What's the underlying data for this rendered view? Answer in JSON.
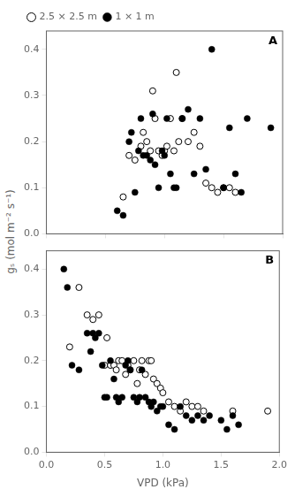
{
  "chart_data": [
    {
      "type": "scatter",
      "annotations": [
        "A"
      ],
      "ylabel": "gₛ (mol m⁻² s⁻¹)",
      "series": [
        {
          "name": "1 × 1 m",
          "color": "#000000",
          "marker": "filled",
          "x": [
            0.6,
            0.65,
            0.7,
            0.72,
            0.75,
            0.78,
            0.8,
            0.82,
            0.85,
            0.88,
            0.9,
            0.92,
            0.95,
            0.98,
            1.0,
            1.02,
            1.05,
            1.08,
            1.1,
            1.15,
            1.2,
            1.25,
            1.3,
            1.35,
            1.4,
            1.5,
            1.55,
            1.6,
            1.65,
            1.7,
            1.9
          ],
          "values": [
            0.05,
            0.04,
            0.2,
            0.22,
            0.09,
            0.18,
            0.25,
            0.17,
            0.17,
            0.16,
            0.26,
            0.15,
            0.1,
            0.18,
            0.17,
            0.25,
            0.13,
            0.1,
            0.1,
            0.25,
            0.27,
            0.13,
            0.25,
            0.14,
            0.4,
            0.1,
            0.23,
            0.13,
            0.09,
            0.25,
            0.23
          ]
        },
        {
          "name": "2.5 × 2.5 m",
          "color": "#000000",
          "marker": "open",
          "x": [
            0.65,
            0.7,
            0.75,
            0.8,
            0.82,
            0.85,
            0.88,
            0.9,
            0.92,
            0.95,
            0.98,
            1.0,
            1.02,
            1.05,
            1.08,
            1.1,
            1.12,
            1.15,
            1.2,
            1.25,
            1.3,
            1.35,
            1.4,
            1.45,
            1.5,
            1.55,
            1.6
          ],
          "values": [
            0.08,
            0.17,
            0.16,
            0.19,
            0.22,
            0.2,
            0.18,
            0.31,
            0.25,
            0.18,
            0.17,
            0.18,
            0.19,
            0.25,
            0.18,
            0.35,
            0.2,
            0.25,
            0.2,
            0.22,
            0.19,
            0.11,
            0.1,
            0.09,
            0.1,
            0.1,
            0.09
          ]
        }
      ],
      "xlim": [
        0.0,
        2.0
      ],
      "ylim": [
        0.0,
        0.44
      ],
      "xticks": [
        0,
        0.5,
        1,
        1.5,
        2
      ],
      "yticks": [
        {
          "value": 0,
          "label": "0.0"
        },
        0.1,
        0.2,
        0.3,
        0.4
      ],
      "tick_labels": "y",
      "grid": false,
      "legend": "upper left"
    },
    {
      "type": "scatter",
      "annotations": [
        "B"
      ],
      "xlabel": "VPD (kPa)",
      "series": [
        {
          "color": "#000000",
          "marker": "filled",
          "x": [
            0.15,
            0.18,
            0.22,
            0.28,
            0.35,
            0.38,
            0.4,
            0.42,
            0.45,
            0.48,
            0.5,
            0.52,
            0.55,
            0.58,
            0.6,
            0.62,
            0.65,
            0.68,
            0.7,
            0.72,
            0.75,
            0.78,
            0.8,
            0.82,
            0.85,
            0.88,
            0.9,
            0.92,
            0.95,
            0.98,
            1.0,
            1.05,
            1.1,
            1.15,
            1.2,
            1.25,
            1.3,
            1.35,
            1.4,
            1.5,
            1.55,
            1.6,
            1.65
          ],
          "values": [
            0.4,
            0.36,
            0.19,
            0.18,
            0.26,
            0.22,
            0.26,
            0.25,
            0.26,
            0.19,
            0.12,
            0.12,
            0.2,
            0.16,
            0.12,
            0.11,
            0.12,
            0.19,
            0.2,
            0.18,
            0.12,
            0.11,
            0.12,
            0.18,
            0.12,
            0.11,
            0.1,
            0.11,
            0.09,
            0.1,
            0.1,
            0.06,
            0.05,
            0.1,
            0.08,
            0.07,
            0.08,
            0.07,
            0.08,
            0.07,
            0.05,
            0.08,
            0.06
          ]
        },
        {
          "color": "#000000",
          "marker": "open",
          "x": [
            0.2,
            0.28,
            0.35,
            0.4,
            0.45,
            0.5,
            0.52,
            0.55,
            0.58,
            0.6,
            0.62,
            0.65,
            0.68,
            0.7,
            0.72,
            0.75,
            0.78,
            0.8,
            0.82,
            0.85,
            0.88,
            0.9,
            0.92,
            0.95,
            0.98,
            1.0,
            1.05,
            1.1,
            1.15,
            1.2,
            1.25,
            1.3,
            1.35,
            1.6,
            1.9
          ],
          "values": [
            0.23,
            0.36,
            0.3,
            0.29,
            0.3,
            0.19,
            0.25,
            0.19,
            0.19,
            0.18,
            0.2,
            0.2,
            0.17,
            0.19,
            0.18,
            0.2,
            0.15,
            0.18,
            0.2,
            0.17,
            0.2,
            0.2,
            0.16,
            0.15,
            0.14,
            0.13,
            0.11,
            0.1,
            0.09,
            0.11,
            0.1,
            0.1,
            0.09,
            0.09,
            0.09
          ]
        }
      ],
      "xlim": [
        0.0,
        2.0
      ],
      "ylim": [
        0.0,
        0.44
      ],
      "xticks": [
        {
          "value": 0,
          "label": "0.0"
        },
        0.5,
        {
          "value": 1,
          "label": "1.0"
        },
        1.5,
        {
          "value": 2,
          "label": "2.0"
        }
      ],
      "yticks": [
        {
          "value": 0,
          "label": "0.0"
        },
        0.1,
        0.2,
        0.3,
        0.4
      ],
      "grid": false
    }
  ]
}
